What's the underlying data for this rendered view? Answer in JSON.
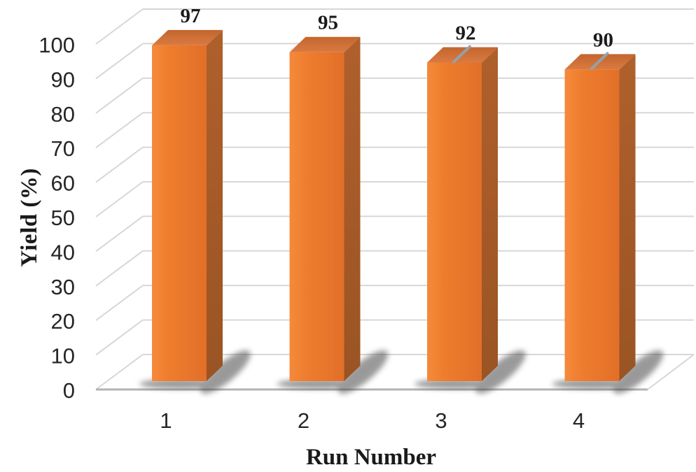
{
  "chart_data": {
    "type": "bar",
    "projection": "3d",
    "title": "",
    "xlabel": "Run Number",
    "ylabel": "Yield (%)",
    "categories": [
      "1",
      "2",
      "3",
      "4"
    ],
    "values": [
      97,
      95,
      92,
      90
    ],
    "data_labels": [
      "97",
      "95",
      "92",
      "90"
    ],
    "ylim": [
      0,
      100
    ],
    "yticks": [
      0,
      10,
      20,
      30,
      40,
      50,
      60,
      70,
      80,
      90,
      100
    ],
    "grid": true,
    "legend": "none",
    "style": {
      "background": "#FFFFFF",
      "bar_front_color": "#EF7D2E",
      "bar_front_light": "#F58A3C",
      "bar_front_dark": "#E26F28",
      "bar_side_light": "#AF602C",
      "bar_side_dark": "#9A5423",
      "bar_top_back": "#C2662E",
      "bar_top_front": "#DA7A41",
      "gridline_color": "#D7D7D7",
      "baseline_color": "#B3B3B3",
      "shadow_color": "#474747",
      "axis_text_color": "#262626",
      "label_color": "#1A1A1A",
      "top_tick_color": "#92A3AE",
      "bars_with_top_tick": [
        3,
        4
      ]
    }
  }
}
